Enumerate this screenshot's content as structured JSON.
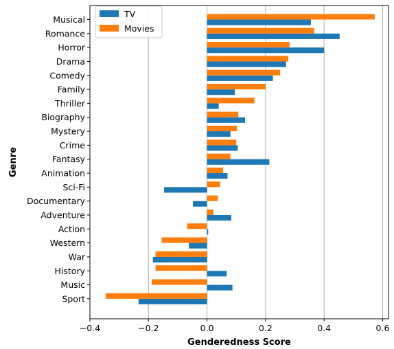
{
  "chart_data": {
    "type": "bar",
    "orientation": "horizontal",
    "xlabel": "Genderedness Score",
    "ylabel": "Genre",
    "xlim": [
      -0.4,
      0.62
    ],
    "xticks": [
      -0.4,
      -0.2,
      0.0,
      0.2,
      0.4,
      0.6
    ],
    "xtick_labels": [
      "−0.4",
      "−0.2",
      "0.0",
      "0.2",
      "0.4",
      "0.6"
    ],
    "grid": "vertical",
    "legend_position": "top-left",
    "categories": [
      "Musical",
      "Romance",
      "Horror",
      "Drama",
      "Comedy",
      "Family",
      "Thriller",
      "Biography",
      "Mystery",
      "Crime",
      "Fantasy",
      "Animation",
      "Sci-Fi",
      "Documentary",
      "Adventure",
      "Action",
      "Western",
      "War",
      "History",
      "Music",
      "Sport"
    ],
    "series": [
      {
        "name": "TV",
        "color": "#1f77b4",
        "values": [
          0.355,
          0.453,
          0.4,
          0.27,
          0.225,
          0.095,
          0.04,
          0.13,
          0.08,
          0.105,
          0.213,
          0.07,
          -0.147,
          -0.048,
          0.083,
          0.004,
          -0.062,
          -0.185,
          0.067,
          0.087,
          -0.234
        ]
      },
      {
        "name": "Movies",
        "color": "#ff7f0e",
        "values": [
          0.573,
          0.366,
          0.282,
          0.278,
          0.25,
          0.2,
          0.162,
          0.107,
          0.102,
          0.1,
          0.08,
          0.055,
          0.045,
          0.037,
          0.022,
          -0.068,
          -0.155,
          -0.176,
          -0.176,
          -0.189,
          -0.346
        ]
      }
    ]
  }
}
